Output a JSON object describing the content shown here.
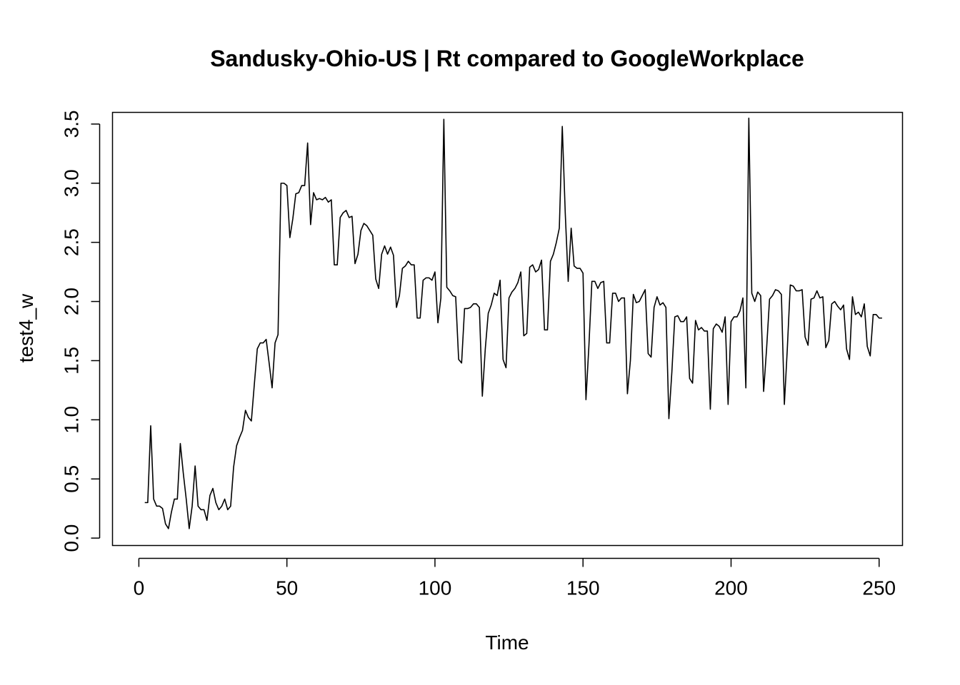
{
  "chart_data": {
    "type": "line",
    "title": "Sandusky-Ohio-US | Rt compared to GoogleWorkplace",
    "xlabel": "Time",
    "ylabel": "test4_w",
    "xlim": [
      -8.9,
      257.9
    ],
    "ylim": [
      -0.0626,
      3.5986
    ],
    "x_ticks": [
      0,
      50,
      100,
      150,
      200,
      250
    ],
    "y_ticks": [
      0.0,
      0.5,
      1.0,
      1.5,
      2.0,
      2.5,
      3.0,
      3.5
    ],
    "x_tick_labels": [
      "0",
      "50",
      "100",
      "150",
      "200",
      "250"
    ],
    "y_tick_labels": [
      "0.0",
      "0.5",
      "1.0",
      "1.5",
      "2.0",
      "2.5",
      "3.0",
      "3.5"
    ],
    "grid": false,
    "line_color": "#000000",
    "series": [
      {
        "x_start": 2,
        "values": [
          0.3,
          0.3,
          0.95,
          0.33,
          0.27,
          0.27,
          0.25,
          0.12,
          0.08,
          0.22,
          0.33,
          0.33,
          0.8,
          0.55,
          0.33,
          0.08,
          0.27,
          0.61,
          0.27,
          0.24,
          0.24,
          0.15,
          0.36,
          0.42,
          0.3,
          0.24,
          0.27,
          0.33,
          0.24,
          0.27,
          0.6,
          0.78,
          0.85,
          0.91,
          1.08,
          1.02,
          0.99,
          1.3,
          1.6,
          1.65,
          1.65,
          1.68,
          1.48,
          1.27,
          1.65,
          1.72,
          3.0,
          3.0,
          2.98,
          2.54,
          2.7,
          2.91,
          2.92,
          2.98,
          2.98,
          3.34,
          2.65,
          2.92,
          2.86,
          2.87,
          2.86,
          2.88,
          2.84,
          2.86,
          2.31,
          2.31,
          2.71,
          2.75,
          2.77,
          2.71,
          2.72,
          2.32,
          2.4,
          2.6,
          2.66,
          2.64,
          2.6,
          2.56,
          2.19,
          2.11,
          2.4,
          2.47,
          2.4,
          2.46,
          2.39,
          1.95,
          2.05,
          2.28,
          2.3,
          2.34,
          2.31,
          2.31,
          1.86,
          1.86,
          2.18,
          2.2,
          2.2,
          2.18,
          2.25,
          1.82,
          2.03,
          3.54,
          2.12,
          2.09,
          2.05,
          2.04,
          1.51,
          1.48,
          1.94,
          1.94,
          1.95,
          1.98,
          1.98,
          1.95,
          1.2,
          1.6,
          1.9,
          1.97,
          2.07,
          2.05,
          2.18,
          1.51,
          1.44,
          2.03,
          2.08,
          2.11,
          2.16,
          2.25,
          1.71,
          1.73,
          2.29,
          2.31,
          2.25,
          2.27,
          2.35,
          1.76,
          1.76,
          2.34,
          2.4,
          2.5,
          2.62,
          3.48,
          2.75,
          2.17,
          2.62,
          2.3,
          2.28,
          2.28,
          2.24,
          1.17,
          1.63,
          2.17,
          2.17,
          2.11,
          2.16,
          2.17,
          1.65,
          1.65,
          2.07,
          2.07,
          2.0,
          2.03,
          2.03,
          1.22,
          1.5,
          2.06,
          1.99,
          2.0,
          2.05,
          2.1,
          1.56,
          1.53,
          1.95,
          2.04,
          1.97,
          1.99,
          1.95,
          1.01,
          1.4,
          1.87,
          1.88,
          1.83,
          1.83,
          1.87,
          1.35,
          1.31,
          1.84,
          1.76,
          1.78,
          1.75,
          1.75,
          1.09,
          1.77,
          1.81,
          1.79,
          1.74,
          1.87,
          1.13,
          1.83,
          1.87,
          1.87,
          1.92,
          2.03,
          1.27,
          3.55,
          2.07,
          2.0,
          2.08,
          2.05,
          1.24,
          1.6,
          2.02,
          2.05,
          2.1,
          2.09,
          2.06,
          1.13,
          1.6,
          2.14,
          2.13,
          2.09,
          2.09,
          2.1,
          1.7,
          1.63,
          2.02,
          2.03,
          2.09,
          2.03,
          2.04,
          1.61,
          1.67,
          1.98,
          2.0,
          1.96,
          1.93,
          1.97,
          1.6,
          1.51,
          2.04,
          1.89,
          1.91,
          1.87,
          1.98,
          1.62,
          1.54,
          1.89,
          1.89,
          1.86,
          1.86
        ]
      }
    ]
  }
}
